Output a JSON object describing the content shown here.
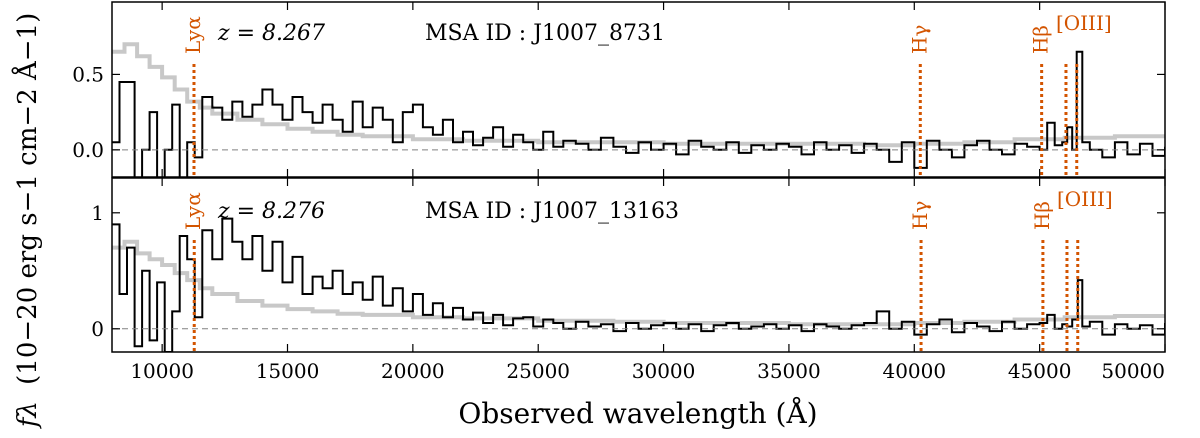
{
  "chart_data": [
    {
      "type": "line",
      "panel": "top",
      "redshift_label": "z = 8.267",
      "msa_label": "MSA ID :  J1007_8731",
      "xlim": [
        8000,
        50000
      ],
      "ylim": [
        -0.18,
        0.98
      ],
      "yticks": [
        0.0,
        0.5
      ],
      "ytick_labels": [
        "0.0",
        "0.5"
      ],
      "lines": [
        {
          "label": "Lyα",
          "x": 11270
        },
        {
          "label": "Hγ",
          "x": 40240
        },
        {
          "label": "Hβ",
          "x": 45080
        },
        {
          "label": "[OIII]",
          "x": 46050
        },
        {
          "label": "",
          "x": 46480
        }
      ],
      "series": [
        {
          "name": "spectrum",
          "color": "#000000",
          "x": [
            8000,
            8300,
            8600,
            8900,
            9200,
            9500,
            9800,
            10100,
            10400,
            10700,
            11000,
            11300,
            11600,
            12000,
            12400,
            12800,
            13200,
            13600,
            14000,
            14400,
            14800,
            15200,
            15600,
            16000,
            16400,
            16800,
            17200,
            17600,
            18000,
            18400,
            18800,
            19200,
            19600,
            20000,
            20400,
            20800,
            21200,
            21600,
            22000,
            22400,
            22800,
            23200,
            23600,
            24000,
            24400,
            24800,
            25200,
            25600,
            26000,
            26500,
            27000,
            27500,
            28000,
            28500,
            29000,
            29500,
            30000,
            30500,
            31000,
            31500,
            32000,
            32500,
            33000,
            33500,
            34000,
            34500,
            35000,
            35500,
            36000,
            36500,
            37000,
            37500,
            38000,
            38500,
            39000,
            39500,
            40000,
            40500,
            41000,
            41500,
            42000,
            42500,
            43000,
            43500,
            44000,
            44500,
            45000,
            45300,
            45600,
            45900,
            46100,
            46300,
            46480,
            46700,
            47000,
            47500,
            48000,
            48500,
            49000,
            49500,
            50000
          ],
          "values": [
            0.05,
            0.45,
            0.45,
            -0.2,
            0.0,
            0.25,
            -0.2,
            0.0,
            0.3,
            -0.2,
            0.05,
            -0.05,
            0.35,
            0.28,
            0.2,
            0.32,
            0.22,
            0.3,
            0.4,
            0.3,
            0.2,
            0.35,
            0.25,
            0.18,
            0.3,
            0.2,
            0.12,
            0.32,
            0.15,
            0.28,
            0.2,
            0.05,
            0.25,
            0.3,
            0.15,
            0.1,
            0.2,
            0.05,
            0.12,
            0.03,
            0.08,
            0.15,
            0.02,
            0.1,
            0.05,
            0.0,
            0.12,
            0.02,
            0.06,
            0.04,
            0.0,
            0.08,
            0.02,
            -0.02,
            0.05,
            0.0,
            0.04,
            -0.03,
            0.06,
            0.02,
            0.0,
            0.05,
            -0.02,
            0.03,
            0.0,
            0.04,
            0.02,
            -0.03,
            0.05,
            0.0,
            0.03,
            -0.02,
            0.04,
            0.0,
            -0.08,
            0.05,
            -0.12,
            0.06,
            0.0,
            -0.05,
            0.03,
            0.06,
            0.0,
            -0.03,
            0.04,
            0.02,
            0.0,
            0.18,
            0.03,
            0.05,
            0.15,
            0.0,
            0.65,
            0.05,
            0.0,
            -0.05,
            0.05,
            -0.03,
            0.04,
            -0.04,
            0.02
          ]
        },
        {
          "name": "model",
          "color": "#c8c8c8",
          "x": [
            8000,
            8500,
            9000,
            9500,
            10000,
            10500,
            11000,
            11500,
            12000,
            13000,
            14000,
            15000,
            16000,
            17000,
            18000,
            20000,
            22000,
            25000,
            28000,
            30000,
            33000,
            35000,
            38000,
            40000,
            42000,
            44000,
            46000,
            48000,
            50000
          ],
          "values": [
            0.65,
            0.7,
            0.62,
            0.55,
            0.48,
            0.4,
            0.32,
            0.28,
            0.24,
            0.2,
            0.17,
            0.14,
            0.12,
            0.1,
            0.09,
            0.07,
            0.06,
            0.05,
            0.05,
            0.04,
            0.04,
            0.04,
            0.03,
            0.04,
            0.05,
            0.07,
            0.08,
            0.09,
            0.1
          ]
        }
      ]
    },
    {
      "type": "line",
      "panel": "bottom",
      "redshift_label": "z = 8.276",
      "msa_label": "MSA ID :  J1007_13163",
      "xlim": [
        8000,
        50000
      ],
      "ylim": [
        -0.2,
        1.3
      ],
      "yticks": [
        0,
        1
      ],
      "ytick_labels": [
        "0",
        "1"
      ],
      "lines": [
        {
          "label": "Lyα",
          "x": 11280
        },
        {
          "label": "Hγ",
          "x": 40270
        },
        {
          "label": "Hβ",
          "x": 45130
        },
        {
          "label": "[OIII]",
          "x": 46090
        },
        {
          "label": "",
          "x": 46520
        }
      ],
      "series": [
        {
          "name": "spectrum",
          "color": "#000000",
          "x": [
            8000,
            8300,
            8600,
            8900,
            9200,
            9500,
            9800,
            10100,
            10400,
            10700,
            11000,
            11300,
            11600,
            12000,
            12400,
            12800,
            13200,
            13600,
            14000,
            14400,
            14800,
            15200,
            15600,
            16000,
            16400,
            16800,
            17200,
            17600,
            18000,
            18400,
            18800,
            19200,
            19600,
            20000,
            20400,
            20800,
            21200,
            21600,
            22000,
            22400,
            22800,
            23200,
            23600,
            24000,
            24400,
            24800,
            25200,
            25600,
            26000,
            26500,
            27000,
            27500,
            28000,
            28500,
            29000,
            29500,
            30000,
            30500,
            31000,
            31500,
            32000,
            32500,
            33000,
            33500,
            34000,
            34500,
            35000,
            35500,
            36000,
            36500,
            37000,
            37500,
            38000,
            38500,
            39000,
            39500,
            40000,
            40500,
            41000,
            41500,
            42000,
            42500,
            43000,
            43500,
            44000,
            44500,
            45000,
            45300,
            45600,
            45900,
            46100,
            46300,
            46520,
            46700,
            47000,
            47500,
            48000,
            48500,
            49000,
            49500,
            50000
          ],
          "values": [
            0.9,
            0.3,
            0.7,
            -0.15,
            0.5,
            -0.1,
            0.4,
            -0.2,
            0.15,
            0.8,
            0.6,
            0.1,
            0.85,
            0.6,
            0.95,
            0.75,
            0.6,
            0.8,
            0.5,
            0.75,
            0.4,
            0.62,
            0.3,
            0.45,
            0.35,
            0.5,
            0.3,
            0.4,
            0.25,
            0.45,
            0.2,
            0.35,
            0.15,
            0.3,
            0.12,
            0.22,
            0.1,
            0.18,
            0.08,
            0.14,
            0.05,
            0.12,
            0.03,
            0.09,
            0.1,
            0.02,
            0.08,
            0.05,
            0.0,
            0.06,
            0.02,
            0.04,
            -0.02,
            0.05,
            0.0,
            0.03,
            0.05,
            0.0,
            0.04,
            -0.02,
            0.03,
            0.05,
            0.0,
            0.02,
            0.04,
            0.0,
            0.03,
            -0.02,
            0.04,
            0.02,
            0.0,
            0.03,
            0.05,
            0.15,
            0.0,
            0.06,
            -0.05,
            0.04,
            0.08,
            -0.03,
            0.05,
            0.02,
            -0.02,
            0.06,
            0.0,
            0.04,
            0.05,
            0.12,
            0.0,
            0.04,
            0.02,
            0.08,
            0.42,
            0.02,
            0.06,
            -0.05,
            0.04,
            0.0,
            0.03,
            -0.05,
            0.05
          ]
        },
        {
          "name": "model",
          "color": "#c8c8c8",
          "x": [
            8000,
            8500,
            9000,
            9500,
            10000,
            10500,
            11000,
            11500,
            12000,
            13000,
            14000,
            15000,
            16000,
            17000,
            18000,
            20000,
            22000,
            25000,
            28000,
            30000,
            33000,
            35000,
            38000,
            40000,
            42000,
            44000,
            46000,
            48000,
            50000
          ],
          "values": [
            0.7,
            0.75,
            0.65,
            0.6,
            0.55,
            0.48,
            0.42,
            0.35,
            0.3,
            0.24,
            0.2,
            0.17,
            0.15,
            0.13,
            0.12,
            0.1,
            0.09,
            0.07,
            0.06,
            0.05,
            0.05,
            0.04,
            0.04,
            0.05,
            0.06,
            0.08,
            0.1,
            0.11,
            0.12
          ]
        }
      ]
    }
  ],
  "axes": {
    "xlabel": "Observed wavelength (Å)",
    "ylabel_symbol": "fλ",
    "ylabel_units": "(10−20 erg s−1 cm−2 Å−1)",
    "xticks": [
      10000,
      15000,
      20000,
      25000,
      30000,
      35000,
      40000,
      45000,
      50000
    ],
    "xtick_labels": [
      "10000",
      "15000",
      "20000",
      "25000",
      "30000",
      "35000",
      "40000",
      "45000",
      "50000"
    ]
  },
  "colors": {
    "line_marker": "#d35400",
    "spectrum": "#000000",
    "model": "#c8c8c8",
    "zero": "#808080"
  }
}
